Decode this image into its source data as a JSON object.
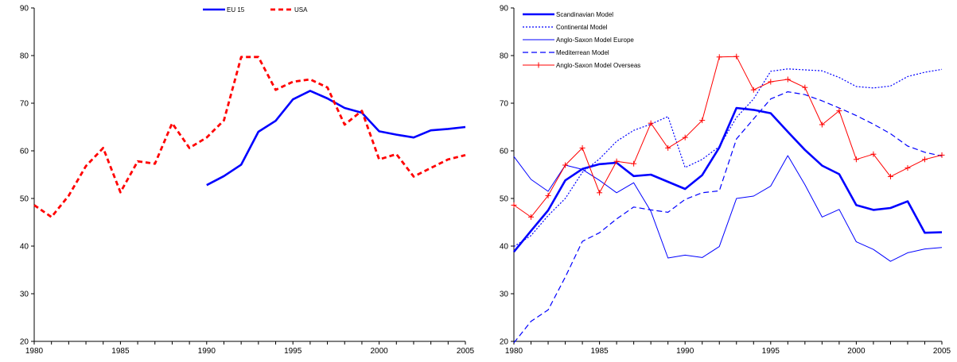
{
  "chart_data": [
    {
      "type": "line",
      "title": "",
      "xlabel": "",
      "ylabel": "",
      "xlim": [
        1980,
        2005
      ],
      "ylim": [
        20,
        90
      ],
      "xticks": [
        1980,
        1985,
        1990,
        1995,
        2000,
        2005
      ],
      "yticks": [
        20,
        30,
        40,
        50,
        60,
        70,
        80,
        90
      ],
      "grid": false,
      "legend": "top-center",
      "series": [
        {
          "name": "EU 15",
          "color": "#0000ff",
          "style": "solid-thick",
          "x": [
            1990,
            1991,
            1992,
            1993,
            1994,
            1995,
            1996,
            1997,
            1998,
            1999,
            2000,
            2001,
            2002,
            2003,
            2004,
            2005
          ],
          "values": [
            52.8,
            54.7,
            57.1,
            64.0,
            66.3,
            70.8,
            72.6,
            71.0,
            69.0,
            68.0,
            64.1,
            63.4,
            62.8,
            64.3,
            64.6,
            65.0
          ]
        },
        {
          "name": "USA",
          "color": "#ff0000",
          "style": "dashed-thick",
          "x": [
            1980,
            1981,
            1982,
            1983,
            1984,
            1985,
            1986,
            1987,
            1988,
            1989,
            1990,
            1991,
            1992,
            1993,
            1994,
            1995,
            1996,
            1997,
            1998,
            1999,
            2000,
            2001,
            2002,
            2003,
            2004,
            2005
          ],
          "values": [
            48.6,
            46.1,
            50.6,
            56.8,
            60.6,
            51.3,
            57.8,
            57.3,
            65.8,
            60.6,
            62.8,
            66.4,
            79.7,
            79.7,
            72.8,
            74.5,
            75.0,
            73.3,
            65.5,
            68.4,
            58.2,
            59.3,
            54.6,
            56.4,
            58.2,
            59.1
          ]
        }
      ]
    },
    {
      "type": "line",
      "title": "",
      "xlabel": "",
      "ylabel": "",
      "xlim": [
        1980,
        2005
      ],
      "ylim": [
        20,
        90
      ],
      "xticks": [
        1980,
        1985,
        1990,
        1995,
        2000,
        2005
      ],
      "yticks": [
        20,
        30,
        40,
        50,
        60,
        70,
        80,
        90
      ],
      "grid": false,
      "legend": "top-left",
      "series": [
        {
          "name": "Scandinavian Model",
          "color": "#0000ff",
          "style": "solid-thick",
          "x": [
            1980,
            1981,
            1982,
            1983,
            1984,
            1985,
            1986,
            1987,
            1988,
            1989,
            1990,
            1991,
            1992,
            1993,
            1994,
            1995,
            1996,
            1997,
            1998,
            1999,
            2000,
            2001,
            2002,
            2003,
            2004,
            2005
          ],
          "values": [
            38.8,
            43.2,
            47.5,
            53.8,
            56.2,
            57.2,
            57.5,
            54.7,
            55.0,
            53.5,
            52.0,
            54.9,
            60.7,
            69.0,
            68.6,
            67.9,
            64.0,
            60.2,
            56.9,
            55.1,
            48.6,
            47.6,
            48.0,
            49.4,
            42.8,
            42.9
          ]
        },
        {
          "name": "Continental Model",
          "color": "#0000ff",
          "style": "dotted",
          "x": [
            1980,
            1981,
            1982,
            1983,
            1984,
            1985,
            1986,
            1987,
            1988,
            1989,
            1990,
            1991,
            1992,
            1993,
            1994,
            1995,
            1996,
            1997,
            1998,
            1999,
            2000,
            2001,
            2002,
            2003,
            2004,
            2005
          ],
          "values": [
            39.9,
            42.2,
            46.4,
            50.0,
            55.5,
            58.3,
            62.0,
            64.3,
            65.6,
            67.2,
            56.5,
            58.2,
            60.9,
            67.0,
            70.9,
            76.7,
            77.2,
            77.0,
            76.8,
            75.4,
            73.5,
            73.2,
            73.6,
            75.6,
            76.5,
            77.1
          ]
        },
        {
          "name": "Anglo-Saxon Model Europe",
          "color": "#0000ff",
          "style": "solid-thin",
          "x": [
            1980,
            1981,
            1982,
            1983,
            1984,
            1985,
            1986,
            1987,
            1988,
            1989,
            1990,
            1991,
            1992,
            1993,
            1994,
            1995,
            1996,
            1997,
            1998,
            1999,
            2000,
            2001,
            2002,
            2003,
            2004,
            2005
          ],
          "values": [
            58.8,
            54.0,
            51.5,
            57.0,
            56.1,
            53.8,
            51.2,
            53.3,
            47.3,
            37.5,
            38.1,
            37.6,
            39.9,
            50.0,
            50.5,
            52.6,
            59.0,
            52.9,
            46.1,
            47.7,
            40.9,
            39.3,
            36.8,
            38.6,
            39.4,
            39.7
          ]
        },
        {
          "name": "Mediterrean Model",
          "color": "#0000ff",
          "style": "dashed",
          "x": [
            1980,
            1981,
            1982,
            1983,
            1984,
            1985,
            1986,
            1987,
            1988,
            1989,
            1990,
            1991,
            1992,
            1993,
            1994,
            1995,
            1996,
            1997,
            1998,
            1999,
            2000,
            2001,
            2002,
            2003,
            2004,
            2005
          ],
          "values": [
            19.7,
            24.2,
            26.6,
            33.5,
            41.0,
            42.8,
            45.7,
            48.2,
            47.6,
            47.1,
            49.8,
            51.2,
            51.6,
            62.5,
            66.7,
            70.9,
            72.4,
            71.8,
            70.5,
            69.0,
            67.4,
            65.6,
            63.6,
            61.0,
            59.7,
            58.9
          ]
        },
        {
          "name": "Anglo-Saxon Model Overseas",
          "color": "#ff0000",
          "style": "solid-markers",
          "x": [
            1980,
            1981,
            1982,
            1983,
            1984,
            1985,
            1986,
            1987,
            1988,
            1989,
            1990,
            1991,
            1992,
            1993,
            1994,
            1995,
            1996,
            1997,
            1998,
            1999,
            2000,
            2001,
            2002,
            2003,
            2004,
            2005
          ],
          "values": [
            48.6,
            46.1,
            50.6,
            57.0,
            60.6,
            51.2,
            57.8,
            57.3,
            65.8,
            60.6,
            62.8,
            66.4,
            79.7,
            79.8,
            72.8,
            74.5,
            75.0,
            73.3,
            65.5,
            68.4,
            58.2,
            59.3,
            54.6,
            56.4,
            58.2,
            59.1
          ]
        }
      ]
    }
  ]
}
